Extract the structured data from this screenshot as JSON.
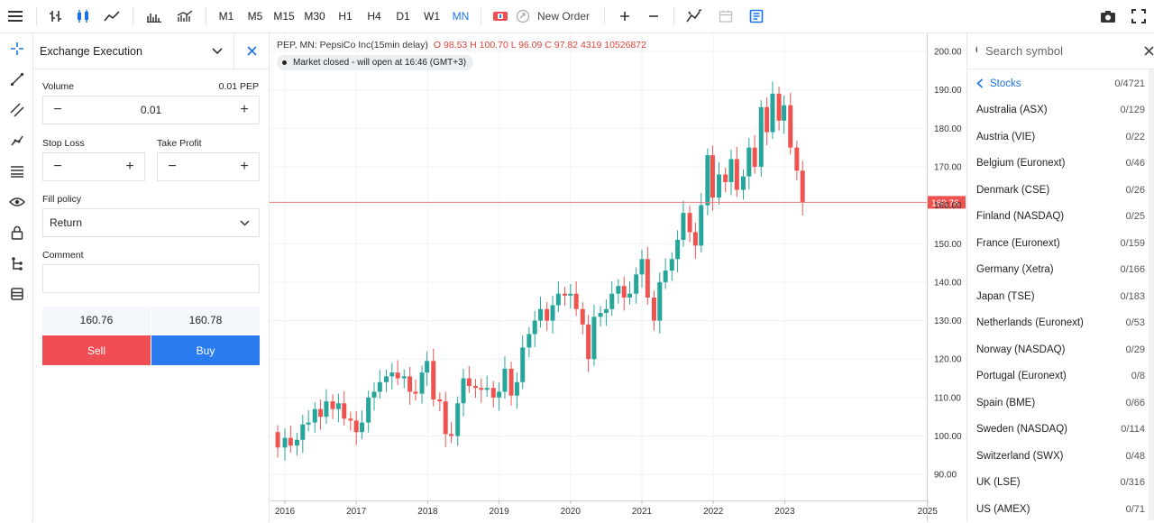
{
  "toolbar": {
    "timeframes": [
      "M1",
      "M5",
      "M15",
      "M30",
      "H1",
      "H4",
      "D1",
      "W1",
      "MN"
    ],
    "active_timeframe": "MN",
    "new_order_label": "New Order"
  },
  "order_panel": {
    "title": "Exchange Execution",
    "volume_label": "Volume",
    "volume_unit": "0.01 PEP",
    "volume_value": "0.01",
    "stop_loss_label": "Stop Loss",
    "take_profit_label": "Take Profit",
    "fill_policy_label": "Fill policy",
    "fill_policy_value": "Return",
    "comment_label": "Comment",
    "bid": "160.76",
    "ask": "160.78",
    "sell_label": "Sell",
    "buy_label": "Buy"
  },
  "chart": {
    "symbol_line": "PEP, MN: PepsiCo Inc(15min delay)",
    "ohlc_line": "O 98.53 H 100.70 L 96.09 C 97.82 4319 10526872",
    "market_status": "Market closed - will open at 16:46 (GMT+3)",
    "current_price": "160.76",
    "colors": {
      "up": "#26a69a",
      "down": "#ef5350",
      "price_line": "#f07b7b"
    }
  },
  "chart_data": {
    "type": "candlestick",
    "title": "",
    "ylim": [
      86,
      203
    ],
    "y_ticks": [
      "200.00",
      "190.00",
      "180.00",
      "170.00",
      "160.00",
      "150.00",
      "140.00",
      "130.00",
      "120.00",
      "110.00",
      "100.00",
      "90.00"
    ],
    "y_tick_values": [
      200,
      190,
      180,
      170,
      160,
      150,
      140,
      130,
      120,
      110,
      100,
      90
    ],
    "x_ticks": [
      "2016",
      "2017",
      "2018",
      "2019",
      "2020",
      "2021",
      "2022",
      "2023",
      "2025"
    ],
    "x_tick_values": [
      2016,
      2017,
      2018,
      2019,
      2020,
      2021,
      2022,
      2023,
      2025
    ],
    "xlim": [
      2015.8,
      2025.0
    ],
    "current_price": 160.76,
    "candles": [
      [
        2015.9,
        101.0,
        97.0
      ],
      [
        2016.0,
        97.0,
        99.5
      ],
      [
        2016.08,
        99.5,
        97.5
      ],
      [
        2016.17,
        97.5,
        99.0
      ],
      [
        2016.25,
        99.0,
        103.0
      ],
      [
        2016.33,
        103.0,
        103.5
      ],
      [
        2016.42,
        103.5,
        107.0
      ],
      [
        2016.5,
        107.0,
        105.0
      ],
      [
        2016.58,
        105.0,
        109.0
      ],
      [
        2016.67,
        109.0,
        107.0
      ],
      [
        2016.75,
        107.0,
        108.5
      ],
      [
        2016.83,
        108.5,
        104.5
      ],
      [
        2016.92,
        104.5,
        104.0
      ],
      [
        2017.0,
        104.0,
        101.0
      ],
      [
        2017.08,
        101.0,
        103.5
      ],
      [
        2017.17,
        103.5,
        110.0
      ],
      [
        2017.25,
        110.0,
        111.5
      ],
      [
        2017.33,
        111.5,
        114.0
      ],
      [
        2017.42,
        114.0,
        115.5
      ],
      [
        2017.5,
        115.5,
        116.5
      ],
      [
        2017.58,
        116.5,
        115.0
      ],
      [
        2017.67,
        115.0,
        115.5
      ],
      [
        2017.75,
        115.5,
        111.5
      ],
      [
        2017.83,
        111.5,
        111.0
      ],
      [
        2017.92,
        111.0,
        116.5
      ],
      [
        2017.99,
        116.5,
        119.5
      ],
      [
        2018.08,
        119.5,
        109.5
      ],
      [
        2018.17,
        109.5,
        109.0
      ],
      [
        2018.25,
        109.0,
        100.5
      ],
      [
        2018.33,
        100.5,
        100.0
      ],
      [
        2018.42,
        100.0,
        108.5
      ],
      [
        2018.5,
        108.5,
        115.0
      ],
      [
        2018.58,
        115.0,
        113.0
      ],
      [
        2018.67,
        113.0,
        112.5
      ],
      [
        2018.75,
        112.5,
        112.0
      ],
      [
        2018.83,
        112.0,
        112.5
      ],
      [
        2018.92,
        112.5,
        110.0
      ],
      [
        2019.0,
        110.0,
        111.5
      ],
      [
        2019.08,
        111.5,
        117.5
      ],
      [
        2019.17,
        117.5,
        110.5
      ],
      [
        2019.25,
        110.5,
        114.0
      ],
      [
        2019.33,
        114.0,
        123.0
      ],
      [
        2019.42,
        123.0,
        126.5
      ],
      [
        2019.5,
        126.5,
        130.0
      ],
      [
        2019.58,
        130.0,
        133.0
      ],
      [
        2019.67,
        133.0,
        130.0
      ],
      [
        2019.75,
        130.0,
        134.0
      ],
      [
        2019.83,
        134.0,
        137.0
      ],
      [
        2019.92,
        137.0,
        136.5
      ],
      [
        2020.0,
        136.5,
        137.0
      ],
      [
        2020.08,
        137.0,
        133.0
      ],
      [
        2020.17,
        133.0,
        129.0
      ],
      [
        2020.25,
        129.0,
        120.0
      ],
      [
        2020.33,
        120.0,
        131.0
      ],
      [
        2020.42,
        131.0,
        132.0
      ],
      [
        2020.5,
        132.0,
        133.0
      ],
      [
        2020.58,
        133.0,
        137.0
      ],
      [
        2020.67,
        137.0,
        139.0
      ],
      [
        2020.75,
        139.0,
        136.0
      ],
      [
        2020.83,
        136.0,
        137.0
      ],
      [
        2020.92,
        137.0,
        142.0
      ],
      [
        2021.0,
        142.0,
        146.0
      ],
      [
        2021.08,
        146.0,
        136.0
      ],
      [
        2021.17,
        136.0,
        130.0
      ],
      [
        2021.25,
        130.0,
        140.0
      ],
      [
        2021.33,
        140.0,
        143.0
      ],
      [
        2021.42,
        143.0,
        146.0
      ],
      [
        2021.5,
        146.0,
        151.0
      ],
      [
        2021.58,
        151.0,
        158.0
      ],
      [
        2021.67,
        158.0,
        153.0
      ],
      [
        2021.75,
        153.0,
        149.5
      ],
      [
        2021.83,
        149.5,
        160.0
      ],
      [
        2021.92,
        160.0,
        173.0
      ],
      [
        2021.99,
        173.0,
        162.0
      ],
      [
        2022.08,
        162.0,
        168.0
      ],
      [
        2022.17,
        168.0,
        166.0
      ],
      [
        2022.25,
        166.0,
        172.0
      ],
      [
        2022.33,
        172.0,
        164.0
      ],
      [
        2022.42,
        164.0,
        167.5
      ],
      [
        2022.5,
        167.5,
        175.0
      ],
      [
        2022.58,
        175.0,
        170.0
      ],
      [
        2022.67,
        170.0,
        185.5
      ],
      [
        2022.75,
        185.5,
        179.0
      ],
      [
        2022.83,
        179.0,
        189.0
      ],
      [
        2022.92,
        189.0,
        182.0
      ],
      [
        2022.99,
        182.0,
        186.0
      ],
      [
        2023.08,
        186.0,
        175.0
      ],
      [
        2023.17,
        175.0,
        169.0
      ],
      [
        2023.25,
        169.0,
        160.76
      ]
    ]
  },
  "symbols": {
    "search_placeholder": "Search symbol",
    "category": {
      "name": "Stocks",
      "count": "0/4721"
    },
    "items": [
      {
        "name": "Australia (ASX)",
        "count": "0/129"
      },
      {
        "name": "Austria (VIE)",
        "count": "0/22"
      },
      {
        "name": "Belgium (Euronext)",
        "count": "0/46"
      },
      {
        "name": "Denmark (CSE)",
        "count": "0/26"
      },
      {
        "name": "Finland (NASDAQ)",
        "count": "0/25"
      },
      {
        "name": "France (Euronext)",
        "count": "0/159"
      },
      {
        "name": "Germany (Xetra)",
        "count": "0/166"
      },
      {
        "name": "Japan (TSE)",
        "count": "0/183"
      },
      {
        "name": "Netherlands (Euronext)",
        "count": "0/53"
      },
      {
        "name": "Norway (NASDAQ)",
        "count": "0/29"
      },
      {
        "name": "Portugal (Euronext)",
        "count": "0/8"
      },
      {
        "name": "Spain (BME)",
        "count": "0/66"
      },
      {
        "name": "Sweden (NASDAQ)",
        "count": "0/114"
      },
      {
        "name": "Switzerland (SWX)",
        "count": "0/48"
      },
      {
        "name": "UK (LSE)",
        "count": "0/316"
      },
      {
        "name": "US (AMEX)",
        "count": "0/71"
      }
    ]
  }
}
